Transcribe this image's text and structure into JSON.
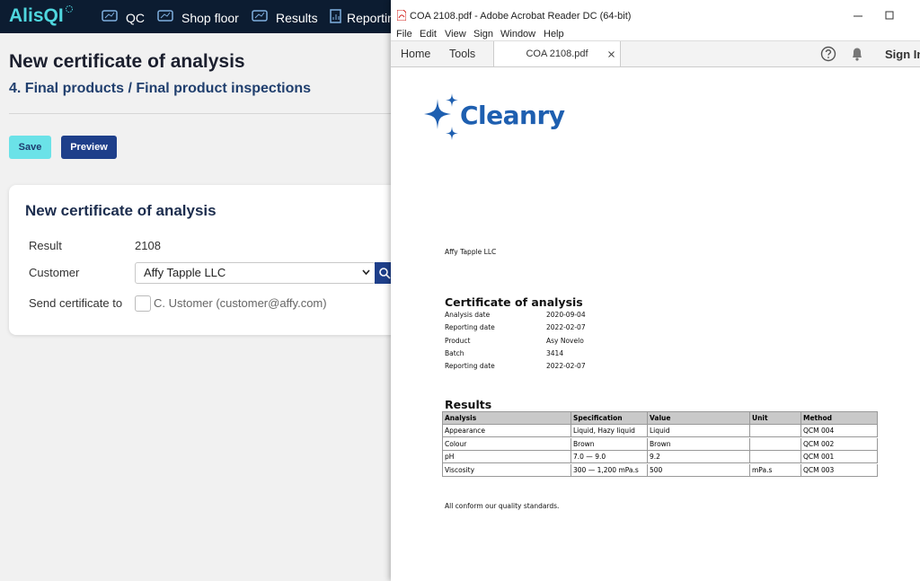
{
  "app": {
    "logo": "AlisQI",
    "nav": [
      "QC",
      "Shop floor",
      "Results",
      "Reporting"
    ],
    "page_title": "New certificate of analysis",
    "breadcrumb": "4. Final products / Final product inspections",
    "buttons": {
      "save": "Save",
      "preview": "Preview"
    },
    "card": {
      "title": "New certificate of analysis",
      "result_label": "Result",
      "result_value": "2108",
      "customer_label": "Customer",
      "customer_value": "Affy Tapple LLC",
      "send_label": "Send certificate to",
      "recipient": "C. Ustomer (customer@affy.com)"
    }
  },
  "reader": {
    "window_title": "COA 2108.pdf - Adobe Acrobat Reader DC (64-bit)",
    "menu": [
      "File",
      "Edit",
      "View",
      "Sign",
      "Window",
      "Help"
    ],
    "tabs": {
      "home": "Home",
      "tools": "Tools",
      "document": "COA 2108.pdf"
    },
    "sign_in": "Sign In",
    "document": {
      "brand": "Cleanry",
      "recipient": "Affy Tapple LLC",
      "heading": "Certificate of analysis",
      "details": [
        [
          "Analysis date",
          "2020-09-04"
        ],
        [
          "Reporting date",
          "2022-02-07"
        ],
        [
          "Product",
          "Asy Novelo"
        ],
        [
          "Batch",
          "3414"
        ],
        [
          "Reporting date",
          "2022-02-07"
        ]
      ],
      "results_heading": "Results",
      "table": {
        "columns": [
          "Analysis",
          "Specification",
          "Value",
          "Unit",
          "Method"
        ],
        "rows": [
          [
            "Appearance",
            "Liquid, Hazy liquid",
            "Liquid",
            "",
            "QCM 004"
          ],
          [
            "Colour",
            "Brown",
            "Brown",
            "",
            "QCM 002"
          ],
          [
            "pH",
            "7.0 — 9.0",
            "9.2",
            "",
            "QCM 001"
          ],
          [
            "Viscosity",
            "300 — 1,200 mPa.s",
            "500",
            "mPa.s",
            "QCM 003"
          ]
        ]
      },
      "footer": "All conform our quality standards."
    }
  }
}
